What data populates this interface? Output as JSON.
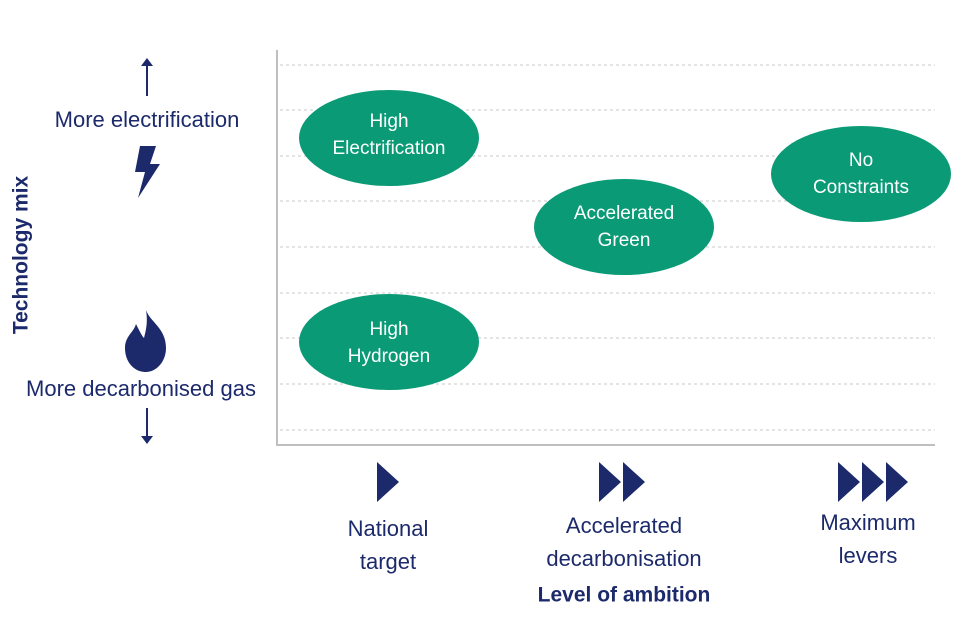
{
  "y_axis": {
    "title": "Technology mix",
    "top_label": "More electrification",
    "bottom_label": "More decarbonised gas"
  },
  "x_axis": {
    "title": "Level of ambition",
    "levels": [
      {
        "lines": [
          "National",
          "target"
        ]
      },
      {
        "lines": [
          "Accelerated",
          "decarbonisation"
        ]
      },
      {
        "lines": [
          "Maximum",
          "levers"
        ]
      }
    ]
  },
  "scenarios": [
    {
      "lines": [
        "High",
        "Electrification"
      ]
    },
    {
      "lines": [
        "Accelerated",
        "Green"
      ]
    },
    {
      "lines": [
        "No",
        "Constraints"
      ]
    },
    {
      "lines": [
        "High",
        "Hydrogen"
      ]
    }
  ]
}
